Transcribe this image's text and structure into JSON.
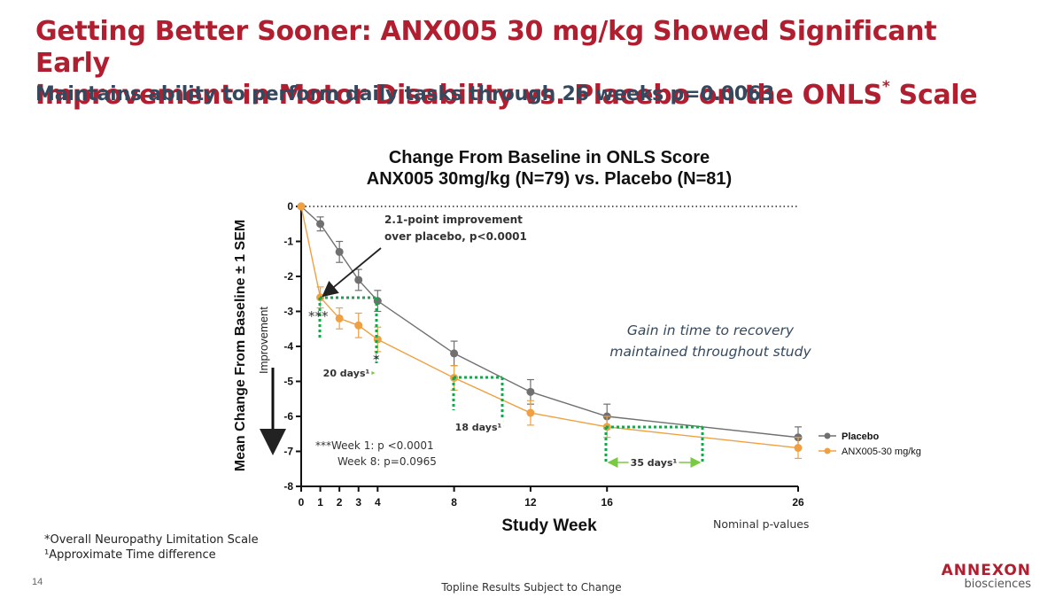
{
  "slide": {
    "title_line1": "Getting Better Sooner: ANX005 30 mg/kg Showed Significant Early",
    "title_line2": "Improvement in Motor Disability vs. Placebo on the ONLS",
    "title_sup": "*",
    "title_line2_end": " Scale",
    "subtitle": "Maintains ability to perform daily tasks through 26 weeks p=0.0063",
    "footnote1": "*Overall Neuropathy Limitation Scale",
    "footnote2": "¹Approximate Time difference",
    "page_number": "14",
    "center_footer": "Topline Results Subject to Change",
    "logo_brand": "ANNEXON",
    "logo_sub": "biosciences"
  },
  "chart_data": {
    "type": "line",
    "title_line1": "Change From Baseline in ONLS Score",
    "title_line2": "ANX005 30mg/kg (N=79) vs. Placebo (N=81)",
    "xlabel": "Study Week",
    "ylabel": "Mean Change From Baseline ± 1 SEM",
    "improvement_label": "Improvement",
    "x": [
      0,
      1,
      2,
      3,
      4,
      8,
      12,
      16,
      26
    ],
    "xlim": [
      0,
      26
    ],
    "ylim": [
      -8,
      0
    ],
    "x_ticks": [
      "0",
      "1",
      "2",
      "3",
      "4",
      "8",
      "12",
      "16",
      "26"
    ],
    "y_ticks": [
      "0",
      "-1",
      "-2",
      "-3",
      "-4",
      "-5",
      "-6",
      "-7",
      "-8"
    ],
    "series": [
      {
        "name": "Placebo",
        "color": "#707070",
        "values": [
          0,
          -0.5,
          -1.3,
          -2.1,
          -2.7,
          -4.2,
          -5.3,
          -6.0,
          -6.6
        ],
        "sem": [
          0,
          0.2,
          0.3,
          0.3,
          0.3,
          0.35,
          0.35,
          0.35,
          0.3
        ]
      },
      {
        "name": "ANX005-30 mg/kg",
        "color": "#f0a040",
        "values": [
          0,
          -2.6,
          -3.2,
          -3.4,
          -3.8,
          -4.9,
          -5.9,
          -6.3,
          -6.9
        ],
        "sem": [
          0,
          0.3,
          0.3,
          0.35,
          0.35,
          0.35,
          0.35,
          0.3,
          0.3
        ]
      }
    ],
    "annotations": {
      "arrow_text_line1": "2.1-point improvement",
      "arrow_text_line2": "over placebo, p<0.0001",
      "week1_stars": "***",
      "week4_star": "*",
      "gain_line1": "Gain in time to recovery",
      "gain_line2": "maintained throughout study",
      "days1": "20 days¹",
      "days2": "18 days¹",
      "days3": "35 days¹",
      "pval_line1": "***Week 1: p <0.0001",
      "pval_line2": "Week 8: p=0.0965",
      "nominal": "Nominal p-values"
    },
    "time_differences": [
      {
        "label": "20 days¹",
        "y": -2.6,
        "x_from": 1,
        "x_to": 4
      },
      {
        "label": "18 days¹",
        "y": -4.9,
        "x_from": 8,
        "x_to": 10.6
      },
      {
        "label": "35 days¹",
        "y": -6.3,
        "x_from": 16,
        "x_to": 21
      }
    ],
    "legend_position": "right",
    "colors": {
      "title": "#b01e2f",
      "subtitle": "#34495e",
      "dotted": "#1aa34a",
      "arrow_green": "#7ac943"
    }
  }
}
